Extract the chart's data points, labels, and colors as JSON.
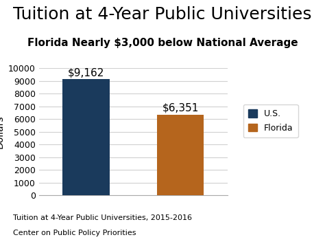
{
  "title": "Tuition at 4-Year Public Universities",
  "subtitle": "Florida Nearly $3,000 below National Average",
  "categories": [
    "U.S.",
    "Florida"
  ],
  "values": [
    9162,
    6351
  ],
  "bar_colors": [
    "#1a3a5c",
    "#b5651d"
  ],
  "bar_labels": [
    "$9,162",
    "$6,351"
  ],
  "ylim": [
    0,
    10000
  ],
  "yticks": [
    0,
    1000,
    2000,
    3000,
    4000,
    5000,
    6000,
    7000,
    8000,
    9000,
    10000
  ],
  "legend_labels": [
    "U.S.",
    "Florida"
  ],
  "footnote_line1": "Tuition at 4-Year Public Universities, 2015-2016",
  "footnote_line2": "Center on Public Policy Priorities",
  "background_color": "#ffffff",
  "title_fontsize": 18,
  "subtitle_fontsize": 11,
  "bar_label_fontsize": 11,
  "ylabel_fontsize": 10,
  "tick_fontsize": 9,
  "legend_fontsize": 9,
  "footnote_fontsize": 8,
  "grid_color": "#d0d0d0",
  "bar_width": 0.5,
  "bar_positions": [
    0,
    1
  ]
}
